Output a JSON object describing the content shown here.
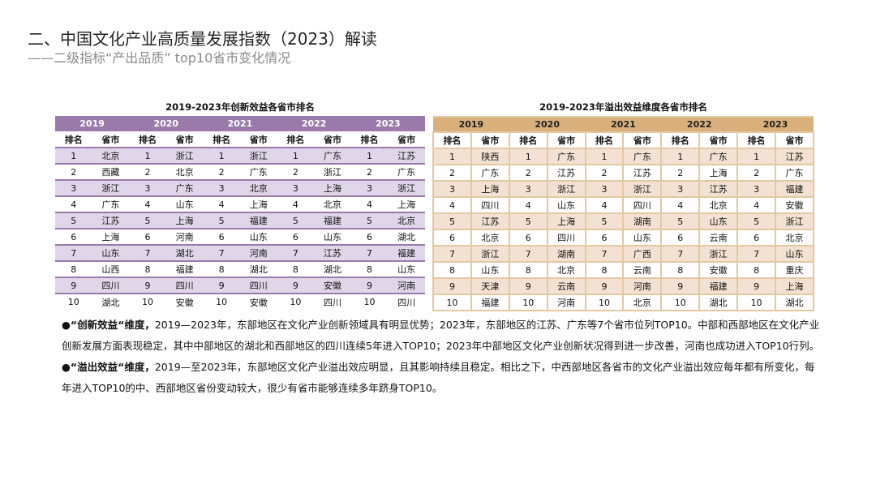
{
  "header": {
    "title": "二、中国文化产业高质量发展指数（2023）解读",
    "subtitle": "——二级指标“产出品质” top10省市变化情况"
  },
  "tables": [
    {
      "caption": "2019-2023年创新效益各省市排名",
      "years": [
        "2019",
        "2020",
        "2021",
        "2022",
        "2023"
      ],
      "rank_header": "排名",
      "province_header": "省市",
      "accent": "#9a7aaa",
      "rows": [
        [
          "北京",
          "浙江",
          "浙江",
          "广东",
          "江苏"
        ],
        [
          "西藏",
          "北京",
          "广东",
          "浙江",
          "广东"
        ],
        [
          "浙江",
          "广东",
          "北京",
          "上海",
          "浙江"
        ],
        [
          "广东",
          "山东",
          "上海",
          "北京",
          "上海"
        ],
        [
          "江苏",
          "上海",
          "福建",
          "福建",
          "北京"
        ],
        [
          "上海",
          "河南",
          "山东",
          "山东",
          "湖北"
        ],
        [
          "山东",
          "湖北",
          "河南",
          "江苏",
          "福建"
        ],
        [
          "山西",
          "福建",
          "湖北",
          "湖北",
          "山东"
        ],
        [
          "四川",
          "四川",
          "四川",
          "安徽",
          "河南"
        ],
        [
          "湖北",
          "安徽",
          "安徽",
          "四川",
          "四川"
        ]
      ]
    },
    {
      "caption": "2019-2023年溢出效益维度各省市排名",
      "years": [
        "2019",
        "2020",
        "2021",
        "2022",
        "2023"
      ],
      "rank_header": "排名",
      "province_header": "省市",
      "accent": "#d9b07c",
      "rows": [
        [
          "陕西",
          "广东",
          "广东",
          "广东",
          "江苏"
        ],
        [
          "广东",
          "江苏",
          "江苏",
          "上海",
          "广东"
        ],
        [
          "上海",
          "浙江",
          "浙江",
          "江苏",
          "福建"
        ],
        [
          "四川",
          "山东",
          "四川",
          "北京",
          "安徽"
        ],
        [
          "江苏",
          "上海",
          "湖南",
          "山东",
          "浙江"
        ],
        [
          "北京",
          "四川",
          "山东",
          "云南",
          "北京"
        ],
        [
          "浙江",
          "湖南",
          "广西",
          "浙江",
          "山东"
        ],
        [
          "山东",
          "北京",
          "云南",
          "安徽",
          "重庆"
        ],
        [
          "天津",
          "云南",
          "河南",
          "福建",
          "上海"
        ],
        [
          "福建",
          "河南",
          "北京",
          "湖北",
          "湖北"
        ]
      ]
    }
  ],
  "notes": [
    {
      "bullet": "●",
      "label": "“创新效益“维度，",
      "text": "2019—2023年，东部地区在文化产业创新领域具有明显优势；2023年，东部地区的江苏、广东等7个省市位列TOP10。中部和西部地区在文化产业创新发展方面表现稳定，其中中部地区的湖北和西部地区的四川连续5年进入TOP10；2023年中部地区文化产业创新状况得到进一步改善，河南也成功进入TOP10行列。"
    },
    {
      "bullet": "●",
      "label": "“溢出效益“维度，",
      "text": "2019—至2023年，东部地区文化产业溢出效应明显，且其影响持续且稳定。相比之下，中西部地区各省市的文化产业溢出效应每年都有所变化，每年进入TOP10的中、西部地区省份变动较大，很少有省市能够连续多年跻身TOP10。"
    }
  ]
}
